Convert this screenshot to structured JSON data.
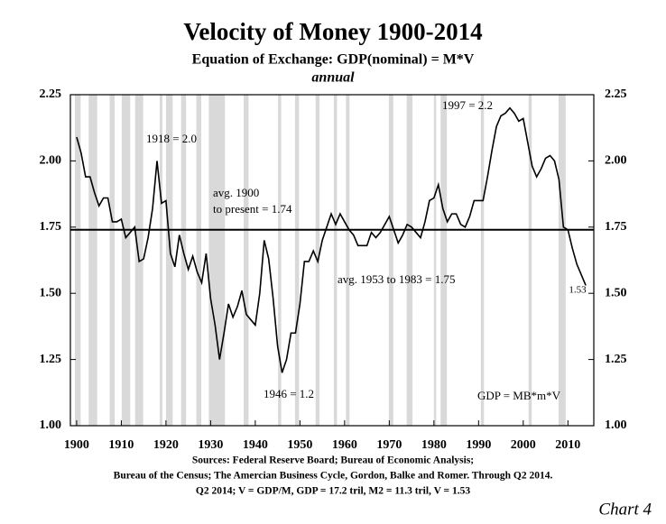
{
  "chart_data": {
    "type": "line",
    "title": "Velocity of Money 1900-2014",
    "subtitle": "Equation of Exchange: GDP(nominal) = M*V",
    "subtitle2": "annual",
    "x": [
      1900,
      1901,
      1902,
      1903,
      1904,
      1905,
      1906,
      1907,
      1908,
      1909,
      1910,
      1911,
      1912,
      1913,
      1914,
      1915,
      1916,
      1917,
      1918,
      1919,
      1920,
      1921,
      1922,
      1923,
      1924,
      1925,
      1926,
      1927,
      1928,
      1929,
      1930,
      1931,
      1932,
      1933,
      1934,
      1935,
      1936,
      1937,
      1938,
      1939,
      1940,
      1941,
      1942,
      1943,
      1944,
      1945,
      1946,
      1947,
      1948,
      1949,
      1950,
      1951,
      1952,
      1953,
      1954,
      1955,
      1956,
      1957,
      1958,
      1959,
      1960,
      1961,
      1962,
      1963,
      1964,
      1965,
      1966,
      1967,
      1968,
      1969,
      1970,
      1971,
      1972,
      1973,
      1974,
      1975,
      1976,
      1977,
      1978,
      1979,
      1980,
      1981,
      1982,
      1983,
      1984,
      1985,
      1986,
      1987,
      1988,
      1989,
      1990,
      1991,
      1992,
      1993,
      1994,
      1995,
      1996,
      1997,
      1998,
      1999,
      2000,
      2001,
      2002,
      2003,
      2004,
      2005,
      2006,
      2007,
      2008,
      2009,
      2010,
      2011,
      2012,
      2013,
      2014
    ],
    "values": [
      2.09,
      2.03,
      1.94,
      1.94,
      1.88,
      1.83,
      1.86,
      1.86,
      1.77,
      1.77,
      1.78,
      1.71,
      1.73,
      1.75,
      1.62,
      1.63,
      1.71,
      1.82,
      2.0,
      1.84,
      1.85,
      1.65,
      1.6,
      1.72,
      1.65,
      1.59,
      1.64,
      1.58,
      1.54,
      1.65,
      1.48,
      1.38,
      1.25,
      1.35,
      1.46,
      1.41,
      1.45,
      1.51,
      1.42,
      1.4,
      1.38,
      1.5,
      1.7,
      1.63,
      1.48,
      1.3,
      1.2,
      1.25,
      1.35,
      1.35,
      1.46,
      1.62,
      1.62,
      1.66,
      1.62,
      1.7,
      1.75,
      1.8,
      1.76,
      1.8,
      1.77,
      1.74,
      1.72,
      1.68,
      1.68,
      1.68,
      1.73,
      1.71,
      1.73,
      1.76,
      1.79,
      1.74,
      1.69,
      1.72,
      1.76,
      1.75,
      1.73,
      1.71,
      1.77,
      1.85,
      1.86,
      1.91,
      1.82,
      1.77,
      1.8,
      1.8,
      1.76,
      1.75,
      1.79,
      1.85,
      1.85,
      1.85,
      1.94,
      2.04,
      2.13,
      2.17,
      2.18,
      2.2,
      2.18,
      2.15,
      2.16,
      2.07,
      1.98,
      1.94,
      1.97,
      2.01,
      2.02,
      2.0,
      1.93,
      1.75,
      1.74,
      1.67,
      1.61,
      1.57,
      1.53
    ],
    "color": "#000000",
    "shaded_periods": [
      [
        1899.6,
        1900.9
      ],
      [
        1902.7,
        1904.6
      ],
      [
        1907.4,
        1908.5
      ],
      [
        1910.1,
        1912.0
      ],
      [
        1913.1,
        1914.9
      ],
      [
        1918.6,
        1919.2
      ],
      [
        1920.0,
        1921.5
      ],
      [
        1923.4,
        1924.5
      ],
      [
        1926.8,
        1927.9
      ],
      [
        1929.6,
        1933.2
      ],
      [
        1937.4,
        1938.5
      ],
      [
        1945.1,
        1945.8
      ],
      [
        1948.9,
        1949.8
      ],
      [
        1953.5,
        1954.4
      ],
      [
        1957.6,
        1958.3
      ],
      [
        1960.3,
        1961.1
      ],
      [
        1969.9,
        1970.9
      ],
      [
        1973.9,
        1975.2
      ],
      [
        1980.0,
        1980.5
      ],
      [
        1981.5,
        1982.9
      ],
      [
        1990.5,
        1991.2
      ],
      [
        2001.2,
        2001.9
      ],
      [
        2007.9,
        2009.5
      ]
    ],
    "shade_color": "#d9d9d9",
    "reference_line": 1.74,
    "annotations": [
      "1918 = 2.0",
      "1997 = 2.2",
      "avg. 1900",
      "to present = 1.74",
      "avg. 1953 to 1983 = 1.75",
      "1946 = 1.2",
      "1.53",
      "GDP = MB*m*V"
    ],
    "xlim": [
      1898.6,
      2015.8
    ],
    "xticks": [
      1900,
      1910,
      1920,
      1930,
      1940,
      1950,
      1960,
      1970,
      1980,
      1990,
      2000,
      2010
    ],
    "ylim": [
      1.0,
      2.25
    ],
    "yticks": [
      {
        "value": 1,
        "label": "1.00"
      },
      1.25,
      {
        "value": 1.5,
        "label": "1.50"
      },
      1.75,
      {
        "value": 2,
        "label": "2.00"
      },
      2.25
    ],
    "y2lim": [
      1.0,
      2.25
    ],
    "y2ticks": [
      {
        "value": 1,
        "label": "1.00"
      },
      1.25,
      {
        "value": 1.5,
        "label": "1.50"
      },
      1.75,
      {
        "value": 2,
        "label": "2.00"
      },
      2.25
    ],
    "sources": [
      "Sources: Federal Reserve Board; Bureau of Economic Analysis;",
      "Bureau of the Census; The Amercian Business Cycle, Gordon, Balke and Romer. Through Q2 2014.",
      "Q2 2014; V = GDP/M, GDP = 17.2 tril, M2 = 11.3 tril, V = 1.53"
    ],
    "chart_label": "Chart 4"
  }
}
